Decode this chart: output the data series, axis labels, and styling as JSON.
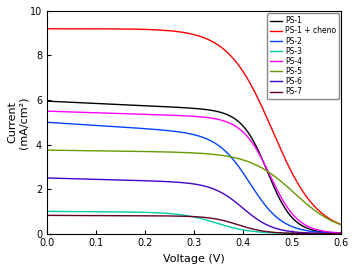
{
  "xlabel": "Voltage (V)",
  "ylabel": "Current\n(mA/cm²)",
  "xlim": [
    0,
    0.6
  ],
  "ylim": [
    0,
    10
  ],
  "curves": [
    {
      "label": "PS-1",
      "color": "black",
      "jsc": 5.95,
      "voc": 0.465,
      "sharpness": 38,
      "rs_slope": 0.08
    },
    {
      "label": "PS-1 + cheno",
      "color": "red",
      "jsc": 9.2,
      "voc": 0.475,
      "sharpness": 22,
      "rs_slope": 0.0
    },
    {
      "label": "PS-2",
      "color": "#0044ff",
      "jsc": 5.0,
      "voc": 0.43,
      "sharpness": 30,
      "rs_slope": 0.12
    },
    {
      "label": "PS-3",
      "color": "#00ccaa",
      "jsc": 1.0,
      "voc": 0.36,
      "sharpness": 28,
      "rs_slope": 0.05
    },
    {
      "label": "PS-4",
      "color": "magenta",
      "jsc": 5.5,
      "voc": 0.47,
      "sharpness": 35,
      "rs_slope": 0.06
    },
    {
      "label": "PS-5",
      "color": "#669900",
      "jsc": 3.75,
      "voc": 0.52,
      "sharpness": 22,
      "rs_slope": 0.04
    },
    {
      "label": "PS-6",
      "color": "#4400cc",
      "jsc": 2.5,
      "voc": 0.415,
      "sharpness": 32,
      "rs_slope": 0.1
    },
    {
      "label": "PS-7",
      "color": "#660022",
      "jsc": 0.82,
      "voc": 0.405,
      "sharpness": 35,
      "rs_slope": 0.04
    }
  ]
}
